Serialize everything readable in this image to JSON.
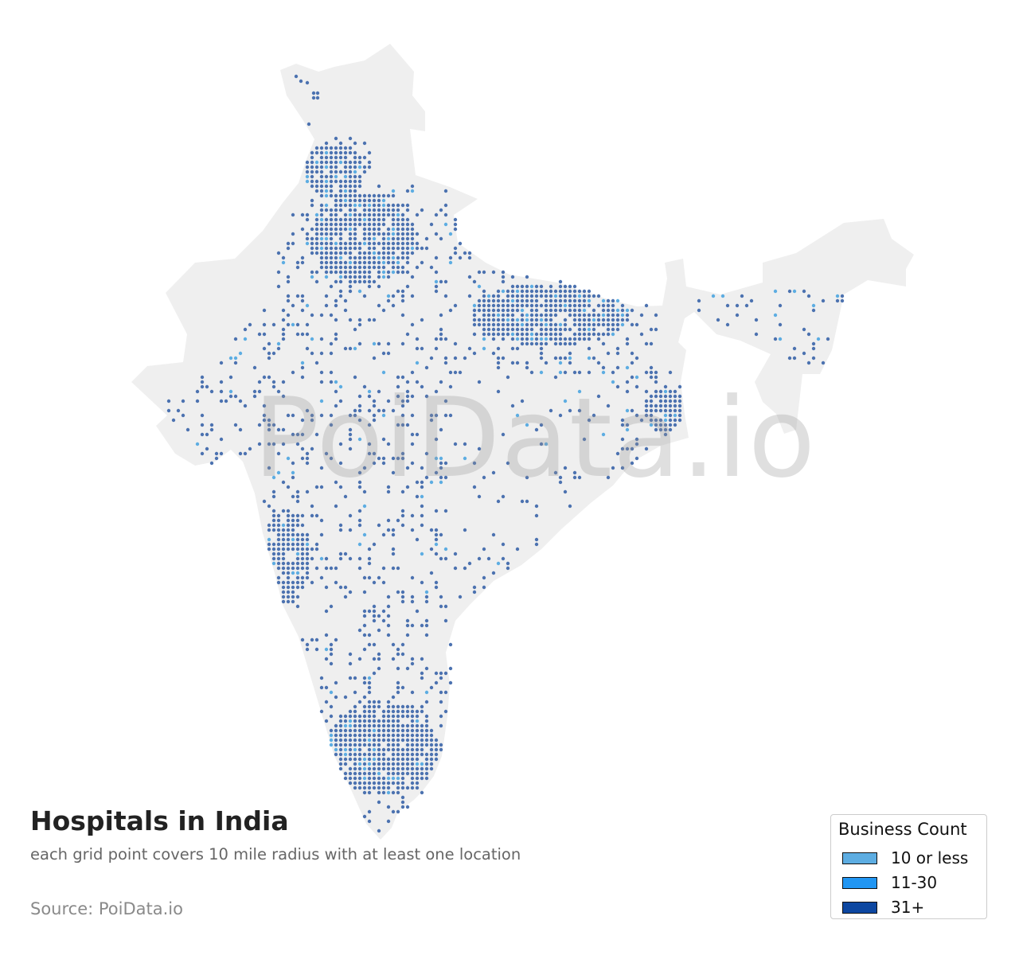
{
  "map": {
    "watermark": "PoiData.io",
    "land_color": "#efefef",
    "dot_color": "#4c72b0",
    "dot_light_color": "#5dade2"
  },
  "title": "Hospitals in India",
  "subtitle": "each grid point covers 10 mile radius with at least one location",
  "source": "Source: PoiData.io",
  "legend": {
    "title": "Business Count",
    "items": [
      {
        "label": "10 or less",
        "color": "#5dade2"
      },
      {
        "label": "11-30",
        "color": "#2196f3"
      },
      {
        "label": "31+",
        "color": "#0d47a1"
      }
    ]
  }
}
